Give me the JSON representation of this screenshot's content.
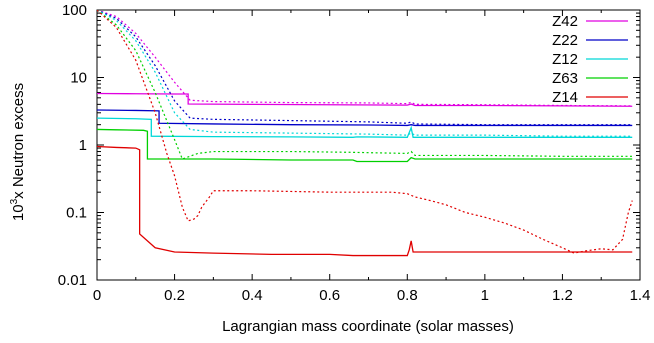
{
  "chart_data": {
    "type": "line",
    "xlabel": "Lagrangian mass coordinate (solar masses)",
    "ylabel_prefix": "10",
    "ylabel_exp": "3",
    "ylabel_rest": "x Neutron excess",
    "xlim": [
      0,
      1.4
    ],
    "ylim": [
      0.01,
      100
    ],
    "y_scale": "log",
    "grid": false,
    "legend_position": "top-right",
    "x_ticks": [
      0,
      0.2,
      0.4,
      0.6,
      0.8,
      1,
      1.2,
      1.4
    ],
    "x_tick_labels": [
      "0",
      "0.2",
      "0.4",
      "0.6",
      "0.8",
      "1",
      "1.2",
      "1.4"
    ],
    "y_ticks": [
      0.01,
      0.1,
      1,
      10,
      100
    ],
    "y_tick_labels": [
      "0.01",
      "0.1",
      "1",
      "10",
      "100"
    ],
    "series": [
      {
        "name": "Z42",
        "color": "#e000e0",
        "solid": [
          [
            0,
            5.8
          ],
          [
            0.1,
            5.75
          ],
          [
            0.2,
            5.7
          ],
          [
            0.235,
            5.7
          ],
          [
            0.235,
            4.05
          ],
          [
            0.4,
            4.0
          ],
          [
            0.6,
            3.95
          ],
          [
            0.8,
            3.9
          ],
          [
            0.81,
            4.05
          ],
          [
            0.82,
            3.85
          ],
          [
            1.0,
            3.85
          ],
          [
            1.2,
            3.8
          ],
          [
            1.38,
            3.75
          ]
        ],
        "dashed": [
          [
            0,
            100
          ],
          [
            0.05,
            80
          ],
          [
            0.1,
            45
          ],
          [
            0.15,
            20
          ],
          [
            0.2,
            8.5
          ],
          [
            0.24,
            4.6
          ],
          [
            0.3,
            4.4
          ],
          [
            0.5,
            4.25
          ],
          [
            0.7,
            4.2
          ],
          [
            0.8,
            4.1
          ],
          [
            0.81,
            4.3
          ],
          [
            0.82,
            4.0
          ],
          [
            1.0,
            3.95
          ],
          [
            1.2,
            3.85
          ],
          [
            1.38,
            3.8
          ]
        ]
      },
      {
        "name": "Z22",
        "color": "#0000c8",
        "solid": [
          [
            0,
            3.3
          ],
          [
            0.1,
            3.25
          ],
          [
            0.16,
            3.2
          ],
          [
            0.16,
            2.1
          ],
          [
            0.3,
            2.05
          ],
          [
            0.5,
            2.0
          ],
          [
            0.7,
            1.98
          ],
          [
            0.8,
            1.95
          ],
          [
            0.81,
            2.0
          ],
          [
            0.82,
            1.95
          ],
          [
            1.0,
            1.95
          ],
          [
            1.2,
            1.95
          ],
          [
            1.38,
            1.95
          ]
        ],
        "dashed": [
          [
            0,
            100
          ],
          [
            0.05,
            75
          ],
          [
            0.1,
            40
          ],
          [
            0.15,
            15
          ],
          [
            0.2,
            4.5
          ],
          [
            0.24,
            2.5
          ],
          [
            0.3,
            2.4
          ],
          [
            0.5,
            2.3
          ],
          [
            0.7,
            2.2
          ],
          [
            0.8,
            2.1
          ],
          [
            0.81,
            2.2
          ],
          [
            0.82,
            2.05
          ],
          [
            1.0,
            2.0
          ],
          [
            1.2,
            2.0
          ],
          [
            1.38,
            2.0
          ]
        ]
      },
      {
        "name": "Z12",
        "color": "#00d8d8",
        "solid": [
          [
            0,
            2.5
          ],
          [
            0.1,
            2.45
          ],
          [
            0.14,
            2.4
          ],
          [
            0.14,
            1.35
          ],
          [
            0.3,
            1.33
          ],
          [
            0.5,
            1.32
          ],
          [
            0.66,
            1.3
          ],
          [
            0.67,
            1.32
          ],
          [
            0.8,
            1.3
          ],
          [
            0.81,
            1.8
          ],
          [
            0.815,
            1.3
          ],
          [
            1.0,
            1.3
          ],
          [
            1.2,
            1.3
          ],
          [
            1.38,
            1.3
          ]
        ],
        "dashed": [
          [
            0,
            100
          ],
          [
            0.05,
            70
          ],
          [
            0.1,
            35
          ],
          [
            0.15,
            12
          ],
          [
            0.2,
            3.0
          ],
          [
            0.24,
            1.7
          ],
          [
            0.3,
            1.55
          ],
          [
            0.5,
            1.5
          ],
          [
            0.7,
            1.45
          ],
          [
            0.8,
            1.4
          ],
          [
            0.81,
            1.5
          ],
          [
            0.82,
            1.4
          ],
          [
            1.0,
            1.4
          ],
          [
            1.2,
            1.35
          ],
          [
            1.38,
            1.35
          ]
        ]
      },
      {
        "name": "Z63",
        "color": "#00d000",
        "solid": [
          [
            0,
            1.7
          ],
          [
            0.05,
            1.68
          ],
          [
            0.12,
            1.65
          ],
          [
            0.13,
            1.6
          ],
          [
            0.13,
            0.62
          ],
          [
            0.3,
            0.62
          ],
          [
            0.5,
            0.6
          ],
          [
            0.66,
            0.6
          ],
          [
            0.67,
            0.57
          ],
          [
            0.8,
            0.57
          ],
          [
            0.81,
            0.65
          ],
          [
            0.82,
            0.62
          ],
          [
            1.0,
            0.62
          ],
          [
            1.2,
            0.62
          ],
          [
            1.38,
            0.62
          ]
        ],
        "dashed": [
          [
            0,
            100
          ],
          [
            0.05,
            60
          ],
          [
            0.1,
            25
          ],
          [
            0.15,
            6
          ],
          [
            0.2,
            1.2
          ],
          [
            0.22,
            0.62
          ],
          [
            0.26,
            0.75
          ],
          [
            0.3,
            0.8
          ],
          [
            0.5,
            0.8
          ],
          [
            0.65,
            0.78
          ],
          [
            0.8,
            0.75
          ],
          [
            0.81,
            0.8
          ],
          [
            0.82,
            0.7
          ],
          [
            1.0,
            0.7
          ],
          [
            1.2,
            0.68
          ],
          [
            1.38,
            0.68
          ]
        ]
      },
      {
        "name": "Z14",
        "color": "#e00000",
        "solid": [
          [
            0,
            0.95
          ],
          [
            0.05,
            0.92
          ],
          [
            0.1,
            0.9
          ],
          [
            0.11,
            0.85
          ],
          [
            0.11,
            0.048
          ],
          [
            0.15,
            0.03
          ],
          [
            0.2,
            0.026
          ],
          [
            0.3,
            0.025
          ],
          [
            0.45,
            0.024
          ],
          [
            0.6,
            0.024
          ],
          [
            0.66,
            0.023
          ],
          [
            0.8,
            0.023
          ],
          [
            0.805,
            0.028
          ],
          [
            0.81,
            0.038
          ],
          [
            0.815,
            0.026
          ],
          [
            1.0,
            0.026
          ],
          [
            1.2,
            0.026
          ],
          [
            1.38,
            0.026
          ]
        ],
        "dashed": [
          [
            0,
            100
          ],
          [
            0.05,
            55
          ],
          [
            0.1,
            18
          ],
          [
            0.15,
            3.0
          ],
          [
            0.18,
            0.75
          ],
          [
            0.2,
            0.35
          ],
          [
            0.22,
            0.12
          ],
          [
            0.235,
            0.075
          ],
          [
            0.25,
            0.08
          ],
          [
            0.26,
            0.09
          ],
          [
            0.27,
            0.12
          ],
          [
            0.29,
            0.17
          ],
          [
            0.3,
            0.21
          ],
          [
            0.4,
            0.21
          ],
          [
            0.5,
            0.205
          ],
          [
            0.6,
            0.2
          ],
          [
            0.7,
            0.2
          ],
          [
            0.76,
            0.2
          ],
          [
            0.8,
            0.19
          ],
          [
            0.82,
            0.17
          ],
          [
            0.86,
            0.15
          ],
          [
            0.9,
            0.13
          ],
          [
            0.95,
            0.1
          ],
          [
            1.0,
            0.085
          ],
          [
            1.05,
            0.07
          ],
          [
            1.1,
            0.055
          ],
          [
            1.15,
            0.04
          ],
          [
            1.2,
            0.03
          ],
          [
            1.23,
            0.025
          ],
          [
            1.26,
            0.027
          ],
          [
            1.3,
            0.029
          ],
          [
            1.33,
            0.028
          ],
          [
            1.355,
            0.04
          ],
          [
            1.37,
            0.1
          ],
          [
            1.38,
            0.15
          ]
        ]
      }
    ]
  }
}
